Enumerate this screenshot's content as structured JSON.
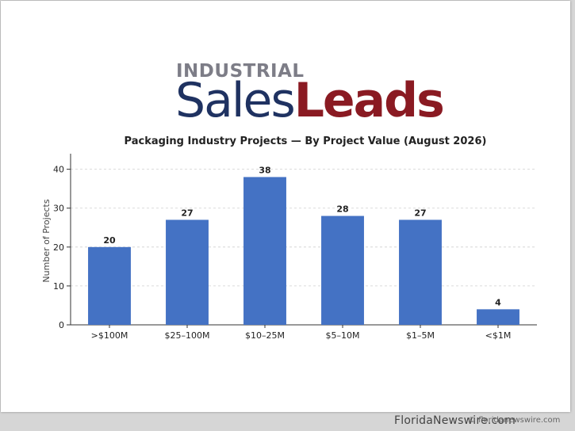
{
  "logo": {
    "top": "INDUSTRIAL",
    "sales": "Sales",
    "leads": "Leads"
  },
  "footer": {
    "site": "FloridaNewswire.com",
    "copyright": "© floridanewswire.com"
  },
  "colors": {
    "bar": "#4472c4",
    "logo_gray": "#7d7d87",
    "logo_navy": "#1f3261",
    "logo_red": "#8a1a22"
  },
  "chart_data": {
    "type": "bar",
    "title": "Packaging Industry Projects — By Project Value (August 2026)",
    "xlabel": "",
    "ylabel": "Number of Projects",
    "categories": [
      ">$100M",
      "$25–100M",
      "$10–25M",
      "$5–10M",
      "$1–5M",
      "<$1M"
    ],
    "values": [
      20,
      27,
      38,
      28,
      27,
      4
    ],
    "data_labels": [
      "20",
      "27",
      "38",
      "28",
      "27",
      "4"
    ],
    "ylim": [
      0,
      44
    ],
    "yticks": [
      0,
      10,
      20,
      30,
      40
    ],
    "grid": "horizontal dashed",
    "legend": "none"
  }
}
